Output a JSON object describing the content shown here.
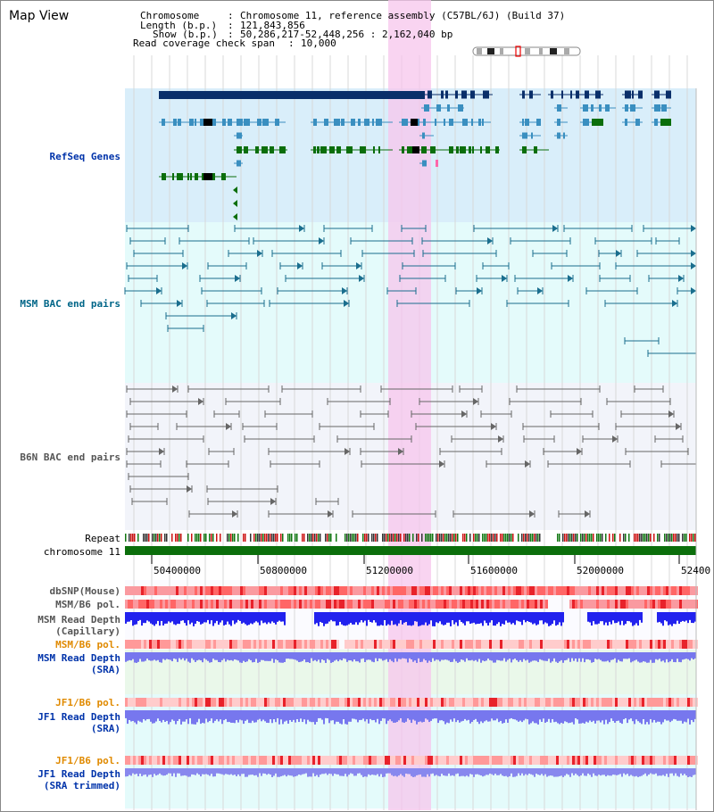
{
  "view": {
    "title": "Map View"
  },
  "info": {
    "chromosome_label": "Chromosome",
    "chromosome_value": "Chromosome 11, reference assembly (C57BL/6J) (Build 37)",
    "length_label": "Length (b.p.)",
    "length_value": "121,843,856",
    "show_label": "Show (b.p.)",
    "show_value": "50,286,217-52,448,256 : 2,162,040 bp",
    "coverage_label": "Read coverage check span",
    "coverage_value": "10,000"
  },
  "tracks": {
    "refseq": "RefSeq Genes",
    "msm_bac": "MSM BAC end pairs",
    "b6n_bac": "B6N BAC end pairs",
    "repeat": "Repeat",
    "chromosome": "chromosome 11",
    "dbsnp": "dbSNP(Mouse)",
    "msm_b6_pol": "MSM/B6 pol.",
    "msm_read_depth_cap_1": "MSM Read Depth",
    "msm_read_depth_cap_2": "(Capillary)",
    "msm_b6_pol_2": "MSM/B6 pol.",
    "msm_read_depth_sra_1": "MSM Read Depth",
    "msm_read_depth_sra_2": "(SRA)",
    "jf1_b6_pol": "JF1/B6 pol.",
    "jf1_read_depth_1": "JF1 Read Depth",
    "jf1_read_depth_2": "(SRA)",
    "jf1_b6_pol_2": "JF1/B6 pol.",
    "jf1_trim_1": "JF1 Read Depth",
    "jf1_trim_2": "(SRA trimmed)"
  },
  "axis": {
    "ticks": [
      "50400000",
      "50800000",
      "51200000",
      "51600000",
      "52000000",
      "52400"
    ]
  },
  "colors": {
    "refseq_bg": "#d9eefa",
    "bac_bg": "#e4fbfb",
    "b6n_bg": "#f2f4fa",
    "highlight": "#f7c6ec",
    "gene_dark": "#0a2f6a",
    "gene_mid": "#3a8fc0",
    "gene_green": "#0b6e0b",
    "bac_line": "#1a6e8e",
    "chromosome_bar": "#0b6e0b"
  }
}
